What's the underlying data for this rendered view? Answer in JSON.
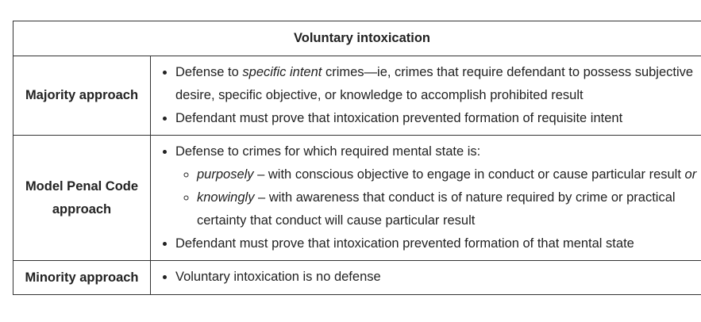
{
  "table": {
    "title": "Voluntary intoxication",
    "majority": {
      "label": "Majority approach",
      "items": [
        {
          "pre": "Defense to ",
          "em": "specific intent",
          "post": " crimes—ie, crimes that require defendant to possess subjective desire, specific objective, or knowledge to accomplish prohibited result"
        },
        {
          "text": "Defendant must prove that intoxication prevented formation of requisite intent"
        }
      ]
    },
    "mpc": {
      "label_line1": "Model Penal Code",
      "label_line2": "approach",
      "item1": "Defense to crimes for which required mental state is:",
      "sub1": {
        "em": "purposely",
        "text": " – with conscious objective to engage in conduct or cause particular result ",
        "em2": "or"
      },
      "sub2": {
        "em": "knowingly",
        "text": " – with awareness that conduct is of nature required by crime or practical certainty that conduct will cause particular result"
      },
      "item2": "Defendant must prove that intoxication prevented formation of that mental state"
    },
    "minority": {
      "label": "Minority approach",
      "items": [
        {
          "text": "Voluntary intoxication is no defense"
        }
      ]
    }
  }
}
